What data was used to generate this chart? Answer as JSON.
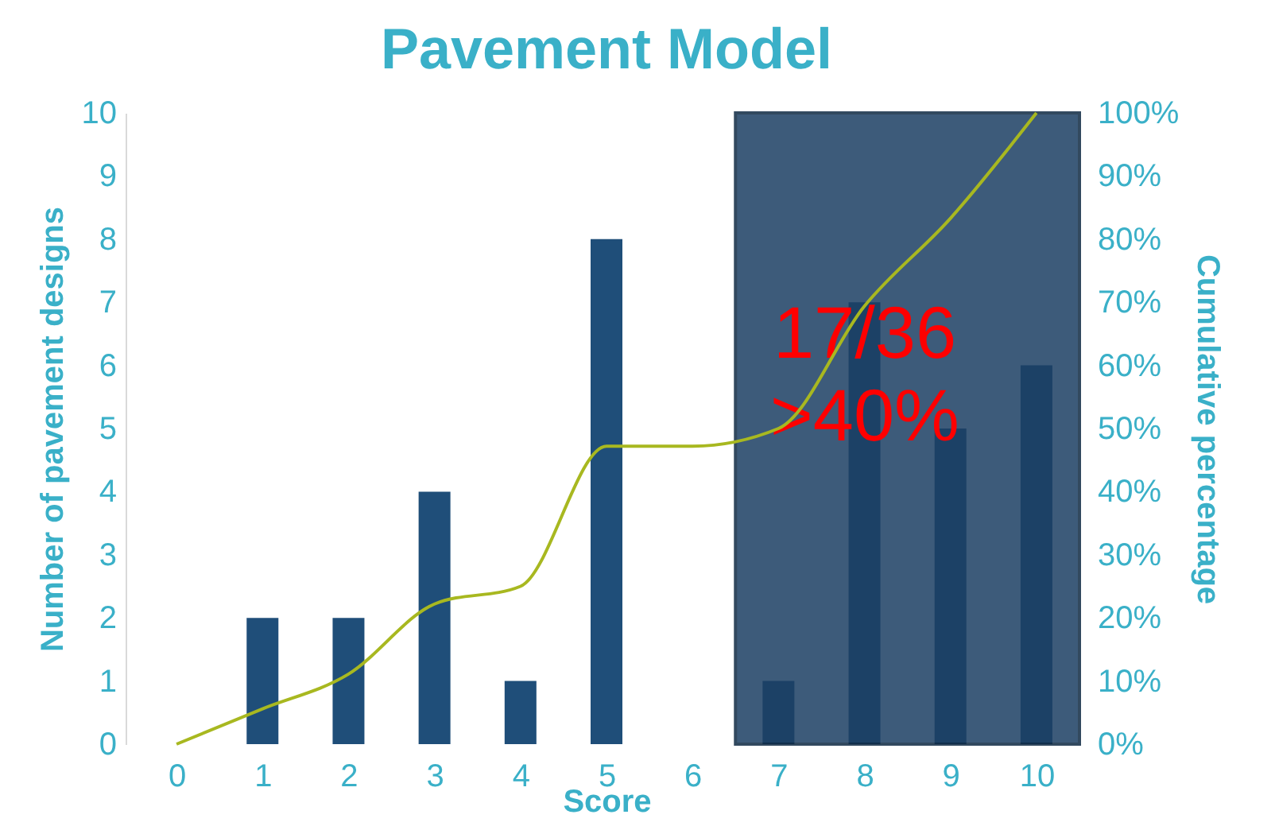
{
  "chart_data": {
    "type": "bar",
    "title": "Pavement Model",
    "xlabel": "Score",
    "ylabel": "Number of pavement designs",
    "y2label": "Cumulative percentage",
    "x": [
      0,
      1,
      2,
      3,
      4,
      5,
      6,
      7,
      8,
      9,
      10
    ],
    "series": [
      {
        "color": "#1f4e79",
        "values": [
          0,
          2,
          2,
          4,
          1,
          8,
          0,
          1,
          7,
          5,
          6
        ]
      },
      {
        "type": "line",
        "axis": "y2",
        "color": "#a8b820",
        "values": [
          0,
          5.6,
          11.1,
          22.2,
          25,
          47.2,
          47.2,
          50,
          69.4,
          83.3,
          100
        ]
      }
    ],
    "xlim": [
      -0.5,
      10.5
    ],
    "xticks": [
      0,
      1,
      2,
      3,
      4,
      5,
      6,
      7,
      8,
      9,
      10
    ],
    "ylim": [
      0,
      10
    ],
    "yticks": [
      0,
      1,
      2,
      3,
      4,
      5,
      6,
      7,
      8,
      9,
      10
    ],
    "y2lim": [
      0,
      100
    ],
    "y2ticks": [
      {
        "value": 0,
        "label": "0%"
      },
      {
        "value": 10,
        "label": "10%"
      },
      {
        "value": 20,
        "label": "20%"
      },
      {
        "value": 30,
        "label": "30%"
      },
      {
        "value": 40,
        "label": "40%"
      },
      {
        "value": 50,
        "label": "50%"
      },
      {
        "value": 60,
        "label": "60%"
      },
      {
        "value": 70,
        "label": "70%"
      },
      {
        "value": 80,
        "label": "80%"
      },
      {
        "value": 90,
        "label": "90%"
      },
      {
        "value": 100,
        "label": "100%"
      }
    ],
    "bands": [
      {
        "axis": "x",
        "from": 6.5,
        "to": 10.5,
        "color": "#1c3f63"
      }
    ],
    "annotations": [
      "17/36",
      ">40%"
    ],
    "grid": false
  }
}
